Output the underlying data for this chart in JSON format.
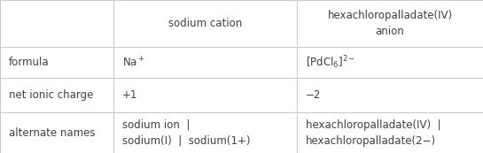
{
  "col_headers": [
    "sodium cation",
    "hexachloropalladate(IV)\nanion"
  ],
  "row_headers": [
    "formula",
    "net ionic charge",
    "alternate names"
  ],
  "cells": [
    [
      "Na$^+$",
      "$[\\mathrm{PdCl}_6]^{2-}$"
    ],
    [
      "+1",
      "−2"
    ],
    [
      "sodium ion  |\nsodium(I)  |  sodium(1+)",
      "hexachloropalladate(IV)  |\nhexachloropalladate(2−)"
    ]
  ],
  "bg_color": "#ffffff",
  "line_color": "#c8c8c8",
  "text_color": "#404040",
  "font_size": 8.5,
  "col_bounds": [
    0.0,
    0.235,
    0.615,
    1.0
  ],
  "row_bounds": [
    1.0,
    0.695,
    0.49,
    0.265,
    0.0
  ]
}
